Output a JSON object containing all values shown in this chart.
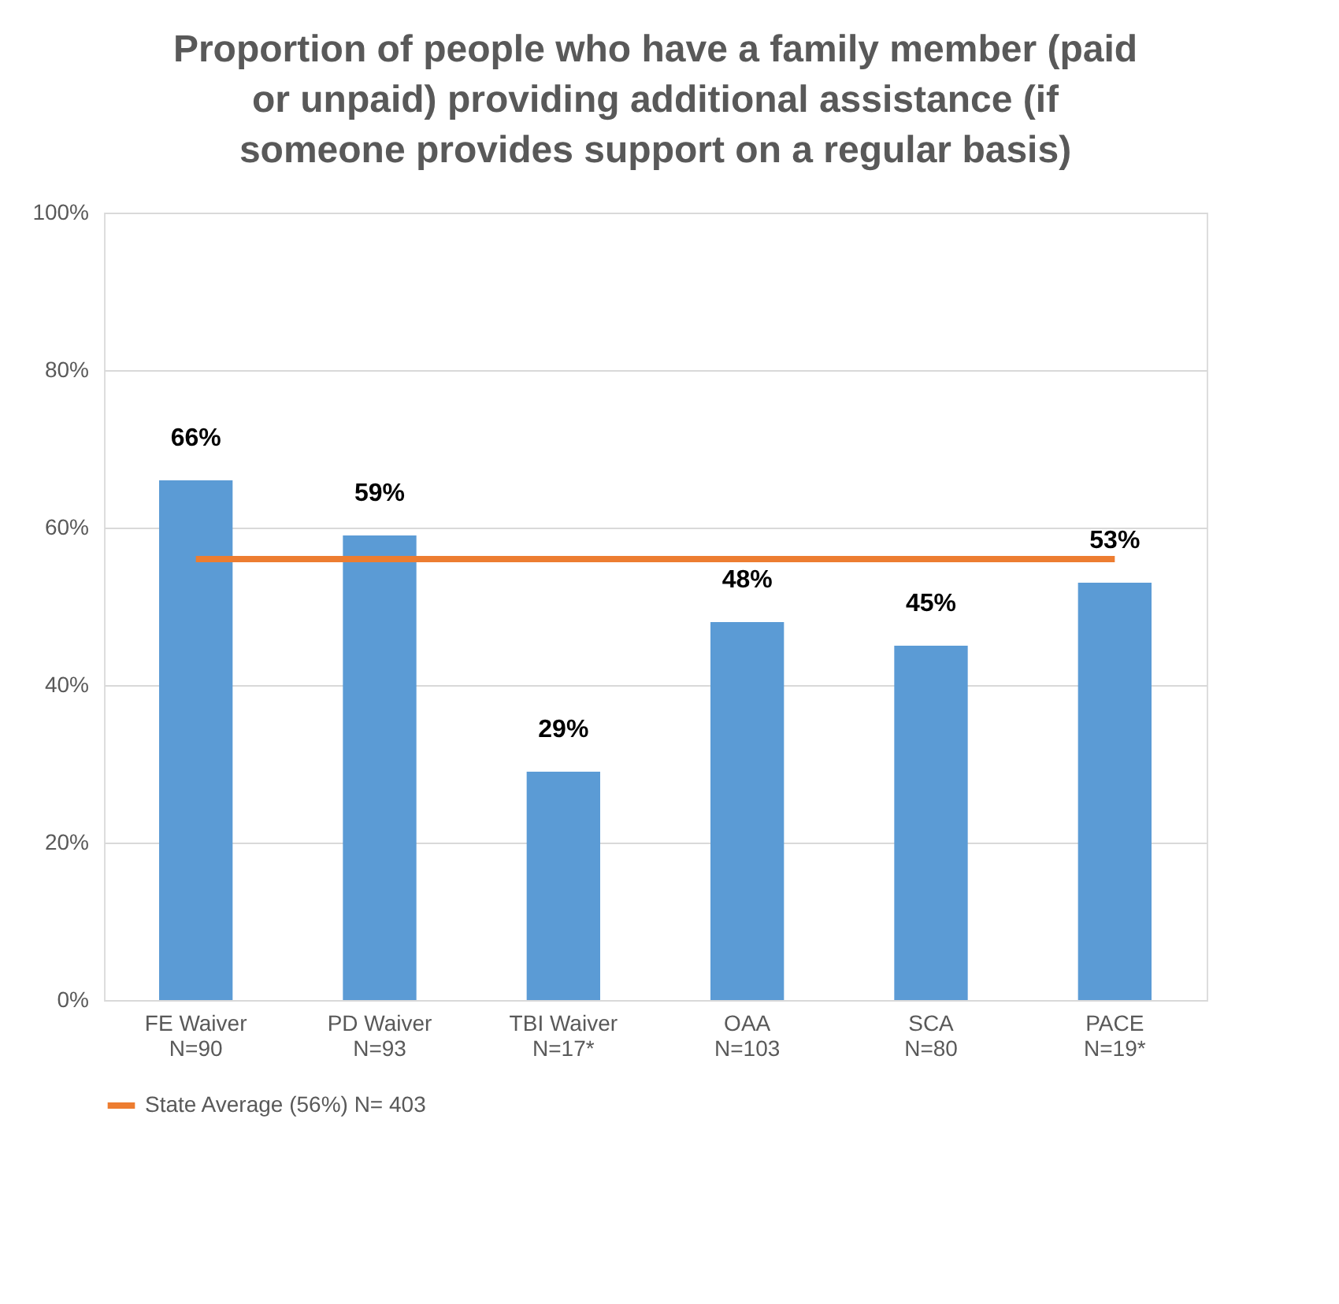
{
  "chart_data": {
    "type": "bar",
    "title": "Proportion of people who have a family member (paid or unpaid) providing additional assistance (if someone provides support on a regular basis)",
    "categories": [
      "FE Waiver\nN=90",
      "PD Waiver\nN=93",
      "TBI Waiver\nN=17*",
      "OAA\nN=103",
      "SCA\nN=80",
      "PACE\nN=19*"
    ],
    "series": [
      {
        "color": "#5b9bd5",
        "values": [
          66,
          59,
          29,
          48,
          45,
          53
        ],
        "value_labels": [
          "66%",
          "59%",
          "29%",
          "48%",
          "45%",
          "53%"
        ]
      },
      {
        "type": "line",
        "name": "State Average (56%) N= 403",
        "color": "#ed7d31",
        "values": [
          56,
          56,
          56,
          56,
          56,
          56
        ]
      }
    ],
    "ylim": [
      0,
      100
    ],
    "yticks": [
      {
        "value": 0,
        "label": "0%"
      },
      {
        "value": 20,
        "label": "20%"
      },
      {
        "value": 40,
        "label": "40%"
      },
      {
        "value": 60,
        "label": "60%"
      },
      {
        "value": 80,
        "label": "80%"
      },
      {
        "value": 100,
        "label": "100%"
      }
    ],
    "grid": "y",
    "legend": "bottom",
    "marker": "none"
  }
}
